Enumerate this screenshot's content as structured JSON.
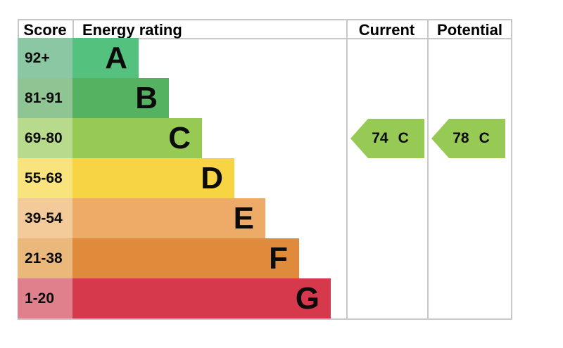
{
  "header": {
    "score": "Score",
    "energy_rating": "Energy rating",
    "current": "Current",
    "potential": "Potential"
  },
  "bands": [
    {
      "score": "92+",
      "letter": "A",
      "color": "#55c17f",
      "tint": "#8bc7a2"
    },
    {
      "score": "81-91",
      "letter": "B",
      "color": "#55b260",
      "tint": "#8ec593"
    },
    {
      "score": "69-80",
      "letter": "C",
      "color": "#97ca55",
      "tint": "#b8da8c"
    },
    {
      "score": "55-68",
      "letter": "D",
      "color": "#f7d444",
      "tint": "#f9e37c"
    },
    {
      "score": "39-54",
      "letter": "E",
      "color": "#eeab68",
      "tint": "#f3cb9b"
    },
    {
      "score": "21-38",
      "letter": "F",
      "color": "#e08b3b",
      "tint": "#eab87b"
    },
    {
      "score": "1-20",
      "letter": "G",
      "color": "#d6384c",
      "tint": "#e1808d"
    }
  ],
  "current": {
    "value": "74",
    "letter": "C",
    "arrow_color": "#97ca55"
  },
  "potential": {
    "value": "78",
    "letter": "C",
    "arrow_color": "#97ca55"
  },
  "colors": {
    "grid_line": "#c8c8c8",
    "text": "#000000"
  },
  "chart_data": {
    "type": "bar",
    "title": "Energy rating",
    "categories": [
      "A",
      "B",
      "C",
      "D",
      "E",
      "F",
      "G"
    ],
    "score_ranges": [
      "92+",
      "81-91",
      "69-80",
      "55-68",
      "39-54",
      "21-38",
      "1-20"
    ],
    "band_colors": [
      "#55c17f",
      "#55b260",
      "#97ca55",
      "#f7d444",
      "#eeab68",
      "#e08b3b",
      "#d6384c"
    ],
    "columns": [
      "Score",
      "Energy rating",
      "Current",
      "Potential"
    ],
    "current": {
      "value": 74,
      "band": "C"
    },
    "potential": {
      "value": 78,
      "band": "C"
    },
    "legend_position": "none",
    "grid": false
  }
}
